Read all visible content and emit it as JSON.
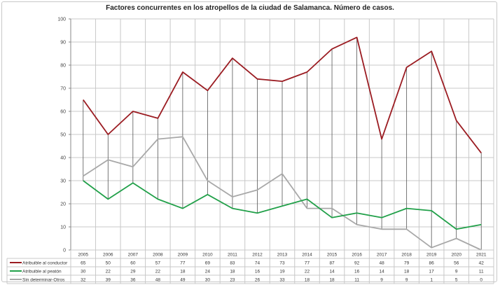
{
  "title": "Factores concurrentes en los atropellos de la ciudad de Salamanca.  Número de casos.",
  "colors": {
    "conductor": "#9b1c22",
    "peaton": "#21a049",
    "otros": "#a8a8a8",
    "dropline": "#555555",
    "grid": "#c8c8c8"
  },
  "chart_data": {
    "type": "line",
    "title": "Factores concurrentes en los atropellos de la ciudad de Salamanca.  Número de casos.",
    "xlabel": "",
    "ylabel": "",
    "ylim": [
      0,
      100
    ],
    "yticks": [
      0,
      10,
      20,
      30,
      40,
      50,
      60,
      70,
      80,
      90,
      100
    ],
    "grid": true,
    "legend_position": "data-table-left",
    "high_low_lines": true,
    "categories": [
      "2005",
      "2006",
      "2007",
      "2008",
      "2009",
      "2010",
      "2011",
      "2012",
      "2013",
      "2014",
      "2015",
      "2016",
      "2017",
      "2018",
      "2019",
      "2020",
      "2021"
    ],
    "series": [
      {
        "name": "Atribuible al conductor",
        "color": "#9b1c22",
        "values": [
          65,
          50,
          60,
          57,
          77,
          69,
          83,
          74,
          73,
          77,
          87,
          92,
          48,
          79,
          86,
          56,
          42
        ]
      },
      {
        "name": "Atribuible al peatón",
        "color": "#21a049",
        "values": [
          30,
          22,
          29,
          22,
          18,
          24,
          18,
          16,
          19,
          22,
          14,
          16,
          14,
          18,
          17,
          9,
          11
        ]
      },
      {
        "name": "Sin determinar-Otros",
        "color": "#a8a8a8",
        "values": [
          32,
          39,
          36,
          48,
          49,
          30,
          23,
          26,
          33,
          18,
          18,
          11,
          9,
          9,
          1,
          5,
          0
        ]
      }
    ]
  }
}
